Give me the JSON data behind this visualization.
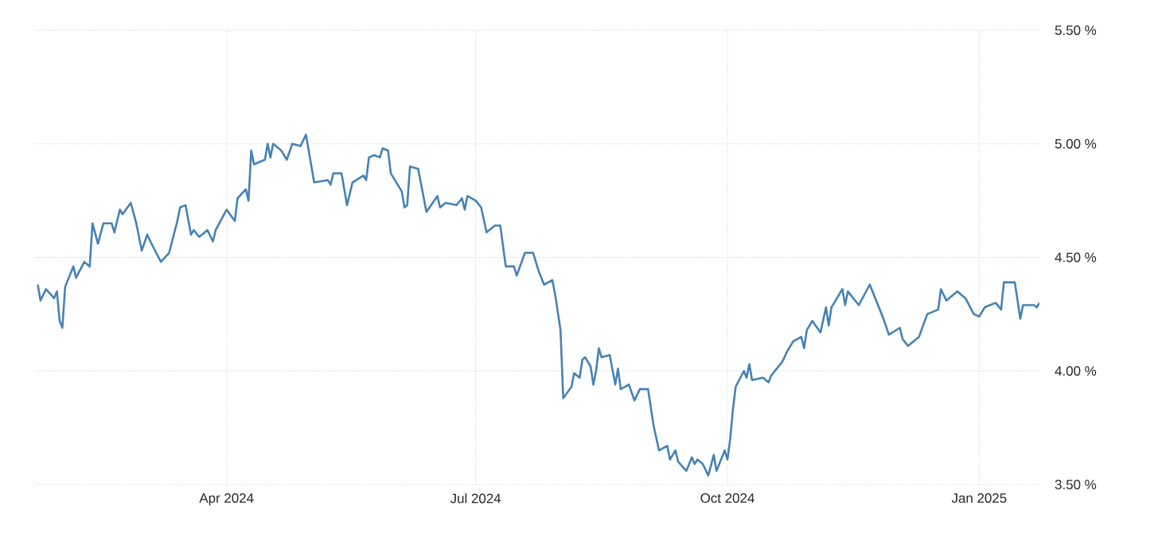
{
  "chart_data": {
    "type": "line",
    "x": [
      "2024-01-23",
      "2024-01-24",
      "2024-01-26",
      "2024-01-29",
      "2024-01-30",
      "2024-01-31",
      "2024-02-01",
      "2024-02-02",
      "2024-02-05",
      "2024-02-06",
      "2024-02-09",
      "2024-02-11",
      "2024-02-12",
      "2024-02-14",
      "2024-02-16",
      "2024-02-19",
      "2024-02-20",
      "2024-02-22",
      "2024-02-23",
      "2024-02-26",
      "2024-02-28",
      "2024-03-01",
      "2024-03-03",
      "2024-03-05",
      "2024-03-08",
      "2024-03-11",
      "2024-03-14",
      "2024-03-15",
      "2024-03-17",
      "2024-03-19",
      "2024-03-20",
      "2024-03-22",
      "2024-03-25",
      "2024-03-27",
      "2024-03-28",
      "2024-04-01",
      "2024-04-04",
      "2024-04-05",
      "2024-04-08",
      "2024-04-09",
      "2024-04-10",
      "2024-04-11",
      "2024-04-15",
      "2024-04-16",
      "2024-04-17",
      "2024-04-18",
      "2024-04-21",
      "2024-04-23",
      "2024-04-25",
      "2024-04-28",
      "2024-04-30",
      "2024-05-03",
      "2024-05-08",
      "2024-05-09",
      "2024-05-10",
      "2024-05-13",
      "2024-05-15",
      "2024-05-17",
      "2024-05-21",
      "2024-05-22",
      "2024-05-23",
      "2024-05-25",
      "2024-05-27",
      "2024-05-28",
      "2024-05-30",
      "2024-05-31",
      "2024-06-04",
      "2024-06-05",
      "2024-06-06",
      "2024-06-07",
      "2024-06-10",
      "2024-06-13",
      "2024-06-17",
      "2024-06-18",
      "2024-06-20",
      "2024-06-24",
      "2024-06-26",
      "2024-06-27",
      "2024-06-28",
      "2024-07-01",
      "2024-07-03",
      "2024-07-05",
      "2024-07-08",
      "2024-07-10",
      "2024-07-12",
      "2024-07-15",
      "2024-07-16",
      "2024-07-19",
      "2024-07-22",
      "2024-07-24",
      "2024-07-26",
      "2024-07-29",
      "2024-07-30",
      "2024-08-01",
      "2024-08-02",
      "2024-08-05",
      "2024-08-06",
      "2024-08-08",
      "2024-08-09",
      "2024-08-10",
      "2024-08-12",
      "2024-08-13",
      "2024-08-14",
      "2024-08-15",
      "2024-08-16",
      "2024-08-19",
      "2024-08-21",
      "2024-08-22",
      "2024-08-23",
      "2024-08-26",
      "2024-08-28",
      "2024-08-30",
      "2024-09-02",
      "2024-09-04",
      "2024-09-06",
      "2024-09-09",
      "2024-09-10",
      "2024-09-12",
      "2024-09-13",
      "2024-09-16",
      "2024-09-18",
      "2024-09-19",
      "2024-09-20",
      "2024-09-22",
      "2024-09-24",
      "2024-09-26",
      "2024-09-27",
      "2024-09-30",
      "2024-10-01",
      "2024-10-02",
      "2024-10-03",
      "2024-10-04",
      "2024-10-07",
      "2024-10-08",
      "2024-10-09",
      "2024-10-10",
      "2024-10-14",
      "2024-10-16",
      "2024-10-17",
      "2024-10-21",
      "2024-10-23",
      "2024-10-25",
      "2024-10-28",
      "2024-10-29",
      "2024-10-30",
      "2024-11-01",
      "2024-11-04",
      "2024-11-06",
      "2024-11-07",
      "2024-11-08",
      "2024-11-11",
      "2024-11-12",
      "2024-11-13",
      "2024-11-14",
      "2024-11-18",
      "2024-11-22",
      "2024-11-27",
      "2024-11-29",
      "2024-12-03",
      "2024-12-04",
      "2024-12-06",
      "2024-12-10",
      "2024-12-13",
      "2024-12-17",
      "2024-12-18",
      "2024-12-20",
      "2024-12-24",
      "2024-12-27",
      "2024-12-30",
      "2025-01-01",
      "2025-01-03",
      "2025-01-07",
      "2025-01-09",
      "2025-01-10",
      "2025-01-14",
      "2025-01-16",
      "2025-01-17",
      "2025-01-21",
      "2025-01-22",
      "2025-01-23"
    ],
    "series": [
      {
        "color": "#4682b4",
        "values": [
          4.38,
          4.31,
          4.36,
          4.32,
          4.35,
          4.22,
          4.19,
          4.37,
          4.46,
          4.41,
          4.48,
          4.46,
          4.65,
          4.56,
          4.65,
          4.65,
          4.61,
          4.71,
          4.69,
          4.74,
          4.65,
          4.53,
          4.6,
          4.55,
          4.48,
          4.52,
          4.66,
          4.72,
          4.73,
          4.6,
          4.62,
          4.59,
          4.62,
          4.57,
          4.62,
          4.71,
          4.66,
          4.76,
          4.8,
          4.75,
          4.97,
          4.91,
          4.93,
          5.0,
          4.94,
          5.0,
          4.97,
          4.93,
          5.0,
          4.99,
          5.04,
          4.83,
          4.84,
          4.82,
          4.87,
          4.87,
          4.73,
          4.83,
          4.86,
          4.84,
          4.94,
          4.95,
          4.94,
          4.98,
          4.97,
          4.87,
          4.79,
          4.72,
          4.73,
          4.9,
          4.89,
          4.7,
          4.77,
          4.72,
          4.74,
          4.73,
          4.76,
          4.71,
          4.77,
          4.75,
          4.72,
          4.61,
          4.64,
          4.64,
          4.46,
          4.46,
          4.42,
          4.52,
          4.52,
          4.44,
          4.38,
          4.4,
          4.34,
          4.18,
          3.88,
          3.93,
          3.99,
          3.97,
          4.05,
          4.06,
          4.02,
          3.94,
          4.0,
          4.1,
          4.06,
          4.07,
          3.94,
          4.01,
          3.92,
          3.94,
          3.87,
          3.92,
          3.92,
          3.76,
          3.65,
          3.67,
          3.61,
          3.65,
          3.6,
          3.56,
          3.62,
          3.59,
          3.61,
          3.59,
          3.54,
          3.63,
          3.56,
          3.65,
          3.61,
          3.7,
          3.83,
          3.93,
          4.0,
          3.97,
          4.03,
          3.96,
          3.97,
          3.95,
          3.98,
          4.04,
          4.09,
          4.13,
          4.15,
          4.1,
          4.18,
          4.22,
          4.17,
          4.28,
          4.2,
          4.28,
          4.34,
          4.36,
          4.29,
          4.35,
          4.29,
          4.38,
          4.23,
          4.16,
          4.19,
          4.14,
          4.11,
          4.15,
          4.25,
          4.27,
          4.36,
          4.31,
          4.35,
          4.32,
          4.25,
          4.24,
          4.28,
          4.3,
          4.27,
          4.39,
          4.39,
          4.23,
          4.29,
          4.29,
          4.28,
          4.3
        ]
      }
    ],
    "xlim": [
      "2024-01-22",
      "2025-01-23"
    ],
    "ylim": [
      3.5,
      5.5
    ],
    "xticks": [
      {
        "value": "2024-04-01",
        "label": "Apr 2024"
      },
      {
        "value": "2024-07-01",
        "label": "Jul 2024"
      },
      {
        "value": "2024-10-01",
        "label": "Oct 2024"
      },
      {
        "value": "2025-01-01",
        "label": "Jan 2025"
      }
    ],
    "yticks": [
      {
        "value": 3.5,
        "label": "3.50 %"
      },
      {
        "value": 4.0,
        "label": "4.00 %"
      },
      {
        "value": 4.5,
        "label": "4.50 %"
      },
      {
        "value": 5.0,
        "label": "5.00 %"
      },
      {
        "value": 5.5,
        "label": "5.50 %"
      }
    ],
    "grid": true
  }
}
